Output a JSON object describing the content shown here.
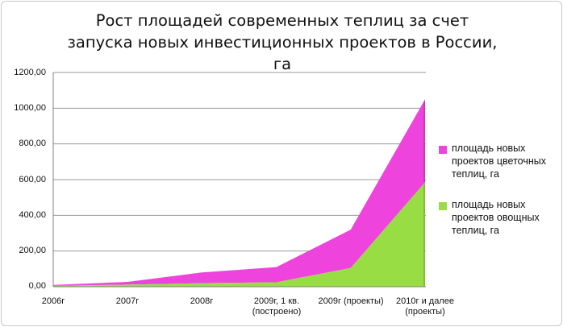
{
  "chart_data": {
    "type": "area",
    "title": "Рост  площадей современных теплиц за счет запуска новых инвестиционных проектов в России, га",
    "categories": [
      "2006г",
      "2007г",
      "2008г",
      "2009г, 1 кв. (построено)",
      "2009г (проекты)",
      "2010г и далее (проекты)"
    ],
    "stacked": true,
    "ylim": [
      0,
      1200
    ],
    "yticks": [
      "0,00",
      "200,00",
      "400,00",
      "600,00",
      "800,00",
      "1000,00",
      "1200,00"
    ],
    "grid": "horizontal major",
    "legend_position": "right",
    "series": [
      {
        "name": "площадь новых проектов цветочных теплиц, га",
        "color": "#ee44dd",
        "values": [
          5,
          15,
          60,
          85,
          215,
          465
        ]
      },
      {
        "name": "площадь новых проектов овощных теплиц, га",
        "color": "#99dd44",
        "values": [
          5,
          12,
          20,
          25,
          105,
          585
        ]
      }
    ]
  }
}
